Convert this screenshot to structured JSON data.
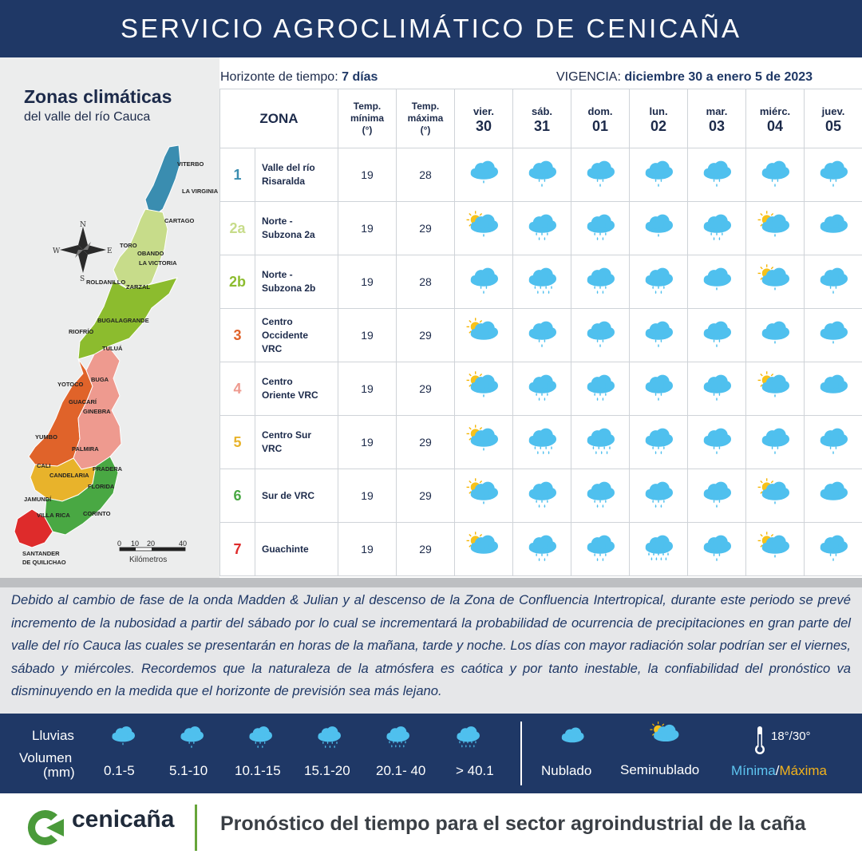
{
  "header": {
    "title": "SERVICIO AGROCLIMÁTICO DE CENICAÑA"
  },
  "map": {
    "title": "Zonas climáticas",
    "subtitle": "del valle del río Cauca",
    "compass": {
      "n": "N",
      "s": "S",
      "e": "E",
      "w": "W"
    },
    "places": [
      "VITERBO",
      "LA VIRGINIA",
      "CARTAGO",
      "TORO",
      "OBANDO",
      "LA VICTORIA",
      "ROLDANILLO",
      "ZARZAL",
      "BUGALAGRANDE",
      "RIOFRÍO",
      "TULUÁ",
      "BUGA",
      "YOTOCO",
      "GUACARÍ",
      "GINEBRA",
      "YUMBO",
      "PALMIRA",
      "CALI",
      "CANDELARIA",
      "PRADERA",
      "FLORIDA",
      "JAMUNDÍ",
      "VILLA RICA",
      "CORINTO",
      "SANTANDER",
      "DE QUILICHAO"
    ],
    "scale": {
      "ticks": [
        "0",
        "10",
        "20",
        "40"
      ],
      "unit": "Kilómetros"
    }
  },
  "forecast": {
    "horizon_label": "Horizonte de tiempo:",
    "horizon_value": "7 días",
    "validity_label": "VIGENCIA:",
    "validity_value": "diciembre 30 a enero 5 de 2023",
    "headers": {
      "zona": "ZONA",
      "tmin": [
        "Temp.",
        "mínima",
        "(°)"
      ],
      "tmax": [
        "Temp.",
        "máxima",
        "(°)"
      ]
    },
    "days": [
      {
        "name": "vier.",
        "num": "30"
      },
      {
        "name": "sáb.",
        "num": "31"
      },
      {
        "name": "dom.",
        "num": "01"
      },
      {
        "name": "lun.",
        "num": "02"
      },
      {
        "name": "mar.",
        "num": "03"
      },
      {
        "name": "miérc.",
        "num": "04"
      },
      {
        "name": "juev.",
        "num": "05"
      }
    ],
    "zones": [
      {
        "id": "1",
        "color": "#3a8db0",
        "name": [
          "Valle del río",
          "Risaralda"
        ],
        "tmin": "19",
        "tmax": "28",
        "icons": [
          {
            "t": "cloud",
            "d": 1
          },
          {
            "t": "cloud",
            "d": 2
          },
          {
            "t": "cloud",
            "d": 2
          },
          {
            "t": "cloud",
            "d": 2
          },
          {
            "t": "cloud",
            "d": 2
          },
          {
            "t": "cloud",
            "d": 2
          },
          {
            "t": "cloud",
            "d": 2
          }
        ]
      },
      {
        "id": "2a",
        "color": "#c7dc8a",
        "name": [
          "Norte -",
          "Subzona 2a"
        ],
        "tmin": "19",
        "tmax": "29",
        "icons": [
          {
            "t": "sun",
            "d": 1
          },
          {
            "t": "cloud",
            "d": 3
          },
          {
            "t": "cloud",
            "d": 3
          },
          {
            "t": "cloud",
            "d": 1
          },
          {
            "t": "cloud",
            "d": 3
          },
          {
            "t": "sun",
            "d": 1
          },
          {
            "t": "cloud",
            "d": 0
          }
        ]
      },
      {
        "id": "2b",
        "color": "#8cbc2e",
        "name": [
          "Norte -",
          "Subzona 2b"
        ],
        "tmin": "19",
        "tmax": "28",
        "icons": [
          {
            "t": "cloud",
            "d": 2
          },
          {
            "t": "cloud",
            "d": 4
          },
          {
            "t": "cloud",
            "d": 3
          },
          {
            "t": "cloud",
            "d": 3
          },
          {
            "t": "cloud",
            "d": 1
          },
          {
            "t": "sun",
            "d": 1
          },
          {
            "t": "cloud",
            "d": 2
          }
        ]
      },
      {
        "id": "3",
        "color": "#e0632a",
        "name": [
          "Centro",
          "Occidente",
          "VRC"
        ],
        "tmin": "19",
        "tmax": "29",
        "icons": [
          {
            "t": "sun",
            "d": 0
          },
          {
            "t": "cloud",
            "d": 2
          },
          {
            "t": "cloud",
            "d": 2
          },
          {
            "t": "cloud",
            "d": 2
          },
          {
            "t": "cloud",
            "d": 2
          },
          {
            "t": "cloud",
            "d": 1
          },
          {
            "t": "cloud",
            "d": 1
          }
        ]
      },
      {
        "id": "4",
        "color": "#ee9a8f",
        "name": [
          "Centro",
          "Oriente VRC"
        ],
        "tmin": "19",
        "tmax": "29",
        "icons": [
          {
            "t": "sun",
            "d": 1
          },
          {
            "t": "cloud",
            "d": 3
          },
          {
            "t": "cloud",
            "d": 3
          },
          {
            "t": "cloud",
            "d": 2
          },
          {
            "t": "cloud",
            "d": 2
          },
          {
            "t": "sun",
            "d": 1
          },
          {
            "t": "cloud",
            "d": 0
          }
        ]
      },
      {
        "id": "5",
        "color": "#e8b32b",
        "name": [
          "Centro Sur",
          "VRC"
        ],
        "tmin": "19",
        "tmax": "29",
        "icons": [
          {
            "t": "sun",
            "d": 1
          },
          {
            "t": "cloud",
            "d": 4
          },
          {
            "t": "cloud",
            "d": 4
          },
          {
            "t": "cloud",
            "d": 3
          },
          {
            "t": "cloud",
            "d": 2
          },
          {
            "t": "cloud",
            "d": 2
          },
          {
            "t": "cloud",
            "d": 2
          }
        ]
      },
      {
        "id": "6",
        "color": "#49a843",
        "name": [
          "Sur de VRC"
        ],
        "tmin": "19",
        "tmax": "29",
        "icons": [
          {
            "t": "sun",
            "d": 1
          },
          {
            "t": "cloud",
            "d": 3
          },
          {
            "t": "cloud",
            "d": 3
          },
          {
            "t": "cloud",
            "d": 3
          },
          {
            "t": "cloud",
            "d": 2
          },
          {
            "t": "sun",
            "d": 1
          },
          {
            "t": "cloud",
            "d": 0
          }
        ]
      },
      {
        "id": "7",
        "color": "#de2b2b",
        "name": [
          "Guachinte"
        ],
        "tmin": "19",
        "tmax": "29",
        "icons": [
          {
            "t": "sun",
            "d": 0
          },
          {
            "t": "cloud",
            "d": 3
          },
          {
            "t": "cloud",
            "d": 3
          },
          {
            "t": "cloud",
            "d": 5
          },
          {
            "t": "cloud",
            "d": 2
          },
          {
            "t": "sun",
            "d": 1
          },
          {
            "t": "cloud",
            "d": 2
          }
        ]
      }
    ]
  },
  "notes": {
    "text": "Debido al cambio de fase de la onda Madden & Julian y al descenso de la Zona de Confluencia Intertropical, durante este periodo se prevé incremento de la nubosidad a partir del sábado por lo cual se incrementará la probabilidad de ocurrencia de precipitaciones en gran parte del valle del río Cauca las cuales se presentarán en horas de la mañana, tarde y noche.  Los días con mayor radiación solar podrían ser el viernes, sábado y miércoles. Recordemos que la naturaleza de la atmósfera es caótica y por tanto inestable, la confiabilidad del pronóstico va disminuyendo en la medida que el horizonte de previsión sea más lejano."
  },
  "legend": {
    "rain_label": "Lluvias",
    "volume_label": "Volumen",
    "volume_unit": "(mm)",
    "ranges": [
      "0.1-5",
      "5.1-10",
      "10.1-15",
      "15.1-20",
      "20.1- 40",
      "> 40.1"
    ],
    "cloudy": "Nublado",
    "partly": "Seminublado",
    "temp_example": "18°/30°",
    "min_label": "Mínima",
    "separator": "/",
    "max_label": "Máxima",
    "colors": {
      "min": "#5ec6f1",
      "max": "#f2b21c"
    }
  },
  "footer": {
    "brand": "cenicaña",
    "title": "Pronóstico del tiempo para el sector agroindustrial de la caña"
  }
}
